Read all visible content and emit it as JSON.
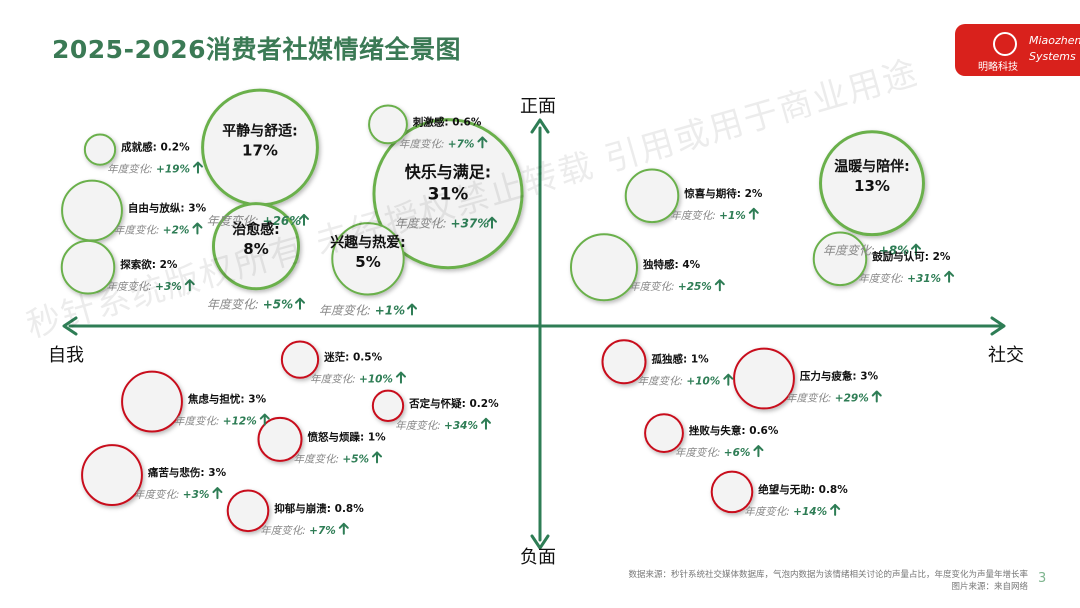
{
  "title": "2025-2026消费者社媒情绪全景图",
  "logo": {
    "cn": "明略科技",
    "en_line1": "Miaozhen",
    "en_line2": "Systems"
  },
  "watermark": "秒针系统版权所有 未经授权禁止转载 引用或用于商业用途",
  "source": {
    "line1": "数据来源：秒针系统社交媒体数据库，气泡内数据为该情绪相关讨论的声量占比，年度变化为声量年增长率",
    "line2": "图片来源：来自网络"
  },
  "page_number": "3",
  "colors": {
    "positive": "#6ab04c",
    "negative": "#c8101e",
    "axis": "#2e7d55",
    "title": "#3b7a55",
    "change": "#2e7d55"
  },
  "chart_data": {
    "type": "scatter",
    "title": "2025-2026消费者社媒情绪全景图",
    "axes": {
      "left": "自我",
      "right": "社交",
      "top": "正面",
      "bottom": "负面"
    },
    "change_label": "年度变化:",
    "emotions": [
      {
        "name": "平静与舒适",
        "share": "17%",
        "change": "+26%",
        "tone": "positive",
        "label_inside": true,
        "x": -7,
        "y": 8.5
      },
      {
        "name": "快乐与满足",
        "share": "31%",
        "change": "+37%",
        "tone": "positive",
        "label_inside": true,
        "x": -2.3,
        "y": 6.3
      },
      {
        "name": "温暖与陪伴",
        "share": "13%",
        "change": "+8%",
        "tone": "positive",
        "label_inside": true,
        "x": 8.3,
        "y": 6.8
      },
      {
        "name": "治愈感",
        "share": "8%",
        "change": "+5%",
        "tone": "positive",
        "label_inside": true,
        "x": -7.1,
        "y": 3.8
      },
      {
        "name": "兴趣与热爱",
        "share": "5%",
        "change": "+1%",
        "tone": "positive",
        "label_inside": true,
        "x": -4.3,
        "y": 3.2
      },
      {
        "name": "刺激感",
        "share": "0.6%",
        "change": "+7%",
        "tone": "positive",
        "label_inside": false,
        "x": -3.8,
        "y": 9.6
      },
      {
        "name": "成就感",
        "share": "0.2%",
        "change": "+19%",
        "tone": "positive",
        "label_inside": false,
        "x": -11,
        "y": 8.4
      },
      {
        "name": "自由与放纵",
        "share": "3%",
        "change": "+2%",
        "tone": "positive",
        "label_inside": false,
        "x": -11.2,
        "y": 5.5
      },
      {
        "name": "探索欲",
        "share": "2%",
        "change": "+3%",
        "tone": "positive",
        "label_inside": false,
        "x": -11.3,
        "y": 2.8
      },
      {
        "name": "惊喜与期待",
        "share": "2%",
        "change": "+1%",
        "tone": "positive",
        "label_inside": false,
        "x": 2.8,
        "y": 6.2
      },
      {
        "name": "独特感",
        "share": "4%",
        "change": "+25%",
        "tone": "positive",
        "label_inside": false,
        "x": 1.6,
        "y": 2.8
      },
      {
        "name": "鼓励与认可",
        "share": "2%",
        "change": "+31%",
        "tone": "positive",
        "label_inside": false,
        "x": 7.5,
        "y": 3.2
      },
      {
        "name": "迷茫",
        "share": "0.5%",
        "change": "+10%",
        "tone": "negative",
        "label_inside": false,
        "x": -6,
        "y": -1.6
      },
      {
        "name": "焦虑与担忧",
        "share": "3%",
        "change": "+12%",
        "tone": "negative",
        "label_inside": false,
        "x": -9.7,
        "y": -3.6
      },
      {
        "name": "否定与怀疑",
        "share": "0.2%",
        "change": "+34%",
        "tone": "negative",
        "label_inside": false,
        "x": -3.8,
        "y": -3.8
      },
      {
        "name": "愤怒与烦躁",
        "share": "1%",
        "change": "+5%",
        "tone": "negative",
        "label_inside": false,
        "x": -6.5,
        "y": -5.4
      },
      {
        "name": "痛苦与悲伤",
        "share": "3%",
        "change": "+3%",
        "tone": "negative",
        "label_inside": false,
        "x": -10.7,
        "y": -7.1
      },
      {
        "name": "抑郁与崩溃",
        "share": "0.8%",
        "change": "+7%",
        "tone": "negative",
        "label_inside": false,
        "x": -7.3,
        "y": -8.8
      },
      {
        "name": "孤独感",
        "share": "1%",
        "change": "+10%",
        "tone": "negative",
        "label_inside": false,
        "x": 2.1,
        "y": -1.7
      },
      {
        "name": "压力与疲惫",
        "share": "3%",
        "change": "+29%",
        "tone": "negative",
        "label_inside": false,
        "x": 5.6,
        "y": -2.5
      },
      {
        "name": "挫败与失意",
        "share": "0.6%",
        "change": "+6%",
        "tone": "negative",
        "label_inside": false,
        "x": 3.1,
        "y": -5.1
      },
      {
        "name": "绝望与无助",
        "share": "0.8%",
        "change": "+14%",
        "tone": "negative",
        "label_inside": false,
        "x": 4.8,
        "y": -7.9
      }
    ]
  }
}
